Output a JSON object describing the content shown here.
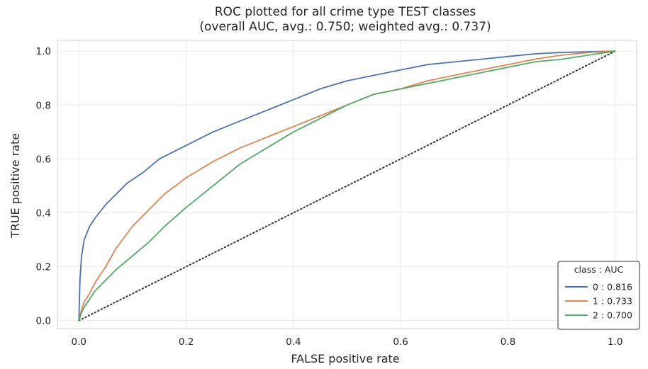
{
  "chart_data": {
    "type": "line",
    "title": "ROC plotted for all crime type TEST classes",
    "subtitle": "(overall AUC, avg.: 0.750; weighted avg.: 0.737)",
    "xlabel": "FALSE positive rate",
    "ylabel": "TRUE positive rate",
    "xlim": [
      -0.04,
      1.04
    ],
    "ylim": [
      -0.03,
      1.04
    ],
    "xticks": [
      "0.0",
      "0.2",
      "0.4",
      "0.6",
      "0.8",
      "1.0"
    ],
    "yticks": [
      "0.0",
      "0.2",
      "0.4",
      "0.6",
      "0.8",
      "1.0"
    ],
    "grid": true,
    "legend": {
      "title": "class : AUC",
      "placement": "bottom-right",
      "entries": [
        "0 : 0.816",
        "1 : 0.733",
        "2 : 0.700"
      ]
    },
    "series": [
      {
        "name": "0 : 0.816",
        "color": "#4c72b0",
        "x": [
          0,
          0.002,
          0.005,
          0.01,
          0.02,
          0.03,
          0.05,
          0.07,
          0.09,
          0.12,
          0.15,
          0.2,
          0.25,
          0.3,
          0.35,
          0.4,
          0.45,
          0.5,
          0.55,
          0.6,
          0.65,
          0.7,
          0.75,
          0.8,
          0.85,
          0.9,
          0.95,
          1.0
        ],
        "y": [
          0,
          0.15,
          0.24,
          0.3,
          0.35,
          0.38,
          0.43,
          0.47,
          0.51,
          0.55,
          0.6,
          0.65,
          0.7,
          0.74,
          0.78,
          0.82,
          0.86,
          0.89,
          0.91,
          0.93,
          0.95,
          0.96,
          0.97,
          0.98,
          0.99,
          0.995,
          0.998,
          1.0
        ]
      },
      {
        "name": "1 : 0.733",
        "color": "#dd8452",
        "x": [
          0,
          0.005,
          0.01,
          0.02,
          0.03,
          0.05,
          0.07,
          0.1,
          0.13,
          0.16,
          0.2,
          0.25,
          0.3,
          0.35,
          0.4,
          0.45,
          0.5,
          0.55,
          0.6,
          0.65,
          0.7,
          0.75,
          0.8,
          0.85,
          0.9,
          0.95,
          1.0
        ],
        "y": [
          0,
          0.04,
          0.07,
          0.1,
          0.14,
          0.2,
          0.27,
          0.35,
          0.41,
          0.47,
          0.53,
          0.59,
          0.64,
          0.68,
          0.72,
          0.76,
          0.8,
          0.84,
          0.86,
          0.89,
          0.91,
          0.93,
          0.95,
          0.97,
          0.985,
          0.995,
          1.0
        ]
      },
      {
        "name": "2 : 0.700",
        "color": "#55a868",
        "x": [
          0,
          0.005,
          0.01,
          0.02,
          0.03,
          0.05,
          0.07,
          0.1,
          0.13,
          0.16,
          0.2,
          0.25,
          0.3,
          0.35,
          0.4,
          0.45,
          0.5,
          0.55,
          0.6,
          0.65,
          0.7,
          0.75,
          0.8,
          0.85,
          0.9,
          0.95,
          1.0
        ],
        "y": [
          0,
          0.03,
          0.05,
          0.08,
          0.11,
          0.15,
          0.19,
          0.24,
          0.29,
          0.35,
          0.42,
          0.5,
          0.58,
          0.64,
          0.7,
          0.75,
          0.8,
          0.84,
          0.86,
          0.88,
          0.9,
          0.92,
          0.94,
          0.96,
          0.97,
          0.985,
          1.0
        ]
      },
      {
        "name": "",
        "color": "#333333",
        "dashed": true,
        "x": [
          0,
          1
        ],
        "y": [
          0,
          1
        ]
      }
    ]
  }
}
